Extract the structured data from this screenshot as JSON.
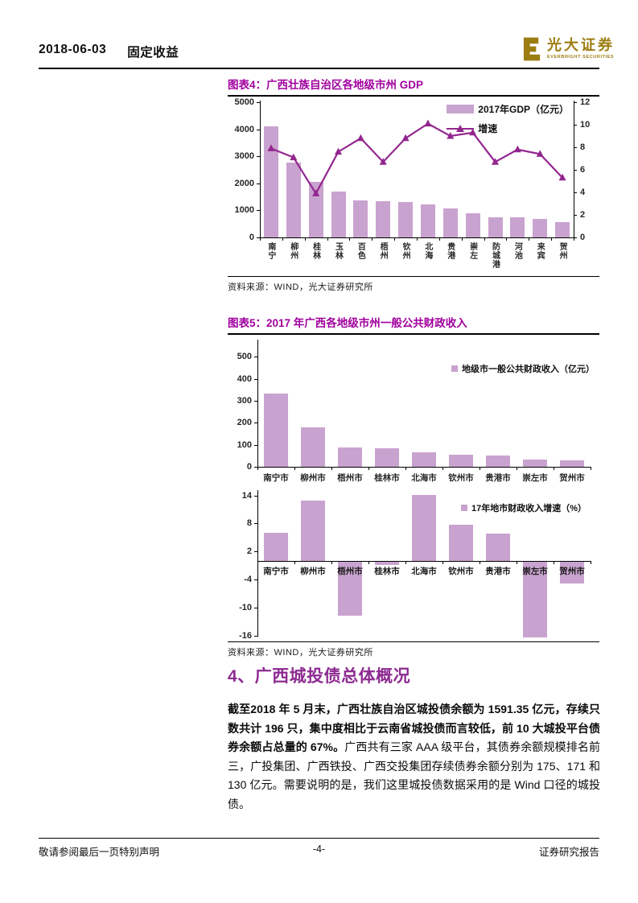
{
  "header": {
    "date": "2018-06-03",
    "category": "固定收益",
    "brand": "光大证券",
    "brand_sub": "EVERBRIGHT SECURITIES"
  },
  "figure4": {
    "title": "图表4：广西壮族自治区各地级市州 GDP",
    "source": "资料来源：WIND，光大证券研究所"
  },
  "figure5": {
    "title": "图表5：2017 年广西各地级市州一般公共财政收入",
    "source": "资料来源：WIND，光大证券研究所"
  },
  "section": {
    "heading": "4、广西城投债总体概况",
    "para_bold": "截至2018 年 5 月末，广西壮族自治区城投债余额为 1591.35 亿元，存续只数共计 196 只，集中度相比于云南省城投债而言较低，前 10 大城投平台债券余额占总量的 67%。",
    "para_regular": "广西共有三家 AAA 级平台，其债券余额规模排名前三，广投集团、广西铁投、广西交投集团存续债券余额分别为 175、171 和 130 亿元。需要说明的是，我们这里城投债数据采用的是 Wind 口径的城投债。"
  },
  "footer": {
    "left": "敬请参阅最后一页特别声明",
    "center": "-4-",
    "right": "证券研究报告"
  },
  "colors": {
    "figure_title": "#A0009E",
    "section_heading": "#8D2A91",
    "bar_fill": "#C9A3CF",
    "line_series": "#93268F",
    "logo_gold": "#9C7D12"
  },
  "chart_data": [
    {
      "id": "figure4",
      "type": "bar",
      "combo": "bar+line",
      "title": "广西壮族自治区各地级市州 GDP",
      "categories": [
        "南宁",
        "柳州",
        "桂林",
        "玉林",
        "百色",
        "梧州",
        "钦州",
        "北海",
        "贵港",
        "崇左",
        "防城港",
        "河池",
        "来宾",
        "贺州"
      ],
      "series": [
        {
          "name": "2017年GDP（亿元）",
          "type": "bar",
          "axis": "left",
          "values": [
            4110,
            2760,
            2050,
            1700,
            1380,
            1350,
            1320,
            1230,
            1080,
            900,
            750,
            740,
            680,
            560
          ]
        },
        {
          "name": "增速",
          "type": "line",
          "axis": "right",
          "values": [
            7.9,
            7.1,
            3.9,
            7.6,
            8.8,
            6.7,
            8.8,
            10.1,
            9.0,
            9.3,
            6.7,
            7.8,
            7.4,
            5.3
          ]
        }
      ],
      "left_axis": {
        "min": 0,
        "max": 5000,
        "ticks": [
          0,
          1000,
          2000,
          3000,
          4000,
          5000
        ]
      },
      "right_axis": {
        "min": 0,
        "max": 12,
        "ticks": [
          0,
          2,
          4,
          6,
          8,
          10,
          12
        ]
      },
      "legend_position": "top-right",
      "grid": false,
      "xlabel": "",
      "ylabel": ""
    },
    {
      "id": "figure5-top",
      "type": "bar",
      "title": "2017 年广西各地级市州一般公共财政收入",
      "categories": [
        "南宁市",
        "柳州市",
        "梧州市",
        "桂林市",
        "北海市",
        "钦州市",
        "贵港市",
        "崇左市",
        "贺州市"
      ],
      "series": [
        {
          "name": "地级市一般公共财政收入（亿元）",
          "type": "bar",
          "axis": "left",
          "values": [
            333,
            180,
            86,
            85,
            65,
            53,
            50,
            34,
            30
          ]
        }
      ],
      "left_axis": {
        "min": 0,
        "max": 570,
        "ticks": [
          0,
          100,
          200,
          300,
          400,
          500
        ]
      },
      "legend_position": "right",
      "grid": false
    },
    {
      "id": "figure5-bottom",
      "type": "bar",
      "title": "17年地市财政收入增速",
      "categories": [
        "南宁市",
        "柳州市",
        "梧州市",
        "桂林市",
        "北海市",
        "钦州市",
        "贵港市",
        "崇左市",
        "贺州市"
      ],
      "series": [
        {
          "name": "17年地市财政收入增速（%）",
          "type": "bar",
          "axis": "left",
          "values": [
            6.0,
            12.9,
            -11.6,
            -0.8,
            14.1,
            7.7,
            5.9,
            -16.3,
            -4.7
          ]
        }
      ],
      "left_axis": {
        "min": -16.6,
        "max": 14.8,
        "ticks": [
          -16,
          -10,
          -4,
          2,
          8,
          14
        ]
      },
      "legend_position": "right",
      "grid": false
    }
  ]
}
